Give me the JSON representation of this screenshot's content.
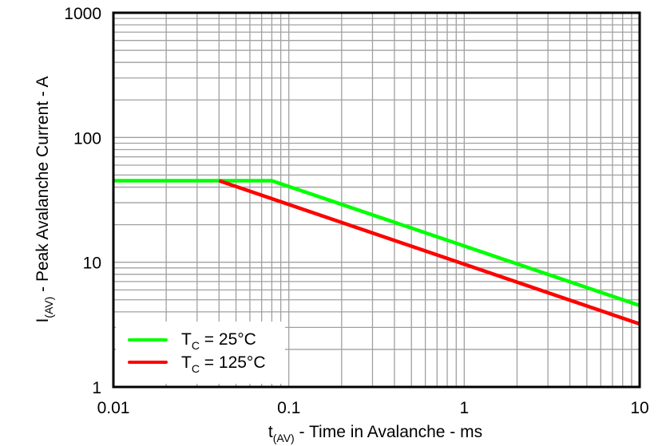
{
  "chart_data": {
    "type": "line",
    "title": "",
    "xlabel": "t(AV) - Time in Avalanche - ms",
    "xlabel_parts": {
      "main": "t",
      "sub": "(AV)",
      "rest": " - Time in Avalanche - ms"
    },
    "ylabel": "I(AV) - Peak Avalanche Current - A",
    "ylabel_parts": {
      "main": "I",
      "sub": "(AV)",
      "rest": " - Peak Avalanche Current - A"
    },
    "xscale": "log",
    "yscale": "log",
    "xlim": [
      0.01,
      10
    ],
    "ylim": [
      1,
      1000
    ],
    "x_ticks": [
      "0.01",
      "0.1",
      "1",
      "10"
    ],
    "y_ticks": [
      "1",
      "10",
      "100",
      "1000"
    ],
    "grid": true,
    "legend_position": "lower left",
    "series": [
      {
        "name": "TC = 25°C",
        "label_main": "T",
        "label_sub": "C",
        "label_rest": " = 25°C",
        "color": "#00ff00",
        "x": [
          0.01,
          0.08,
          10
        ],
        "y": [
          45,
          45,
          4.5
        ]
      },
      {
        "name": "TC = 125°C",
        "label_main": "T",
        "label_sub": "C",
        "label_rest": " = 125°C",
        "color": "#ff0000",
        "x": [
          0.04,
          10
        ],
        "y": [
          45,
          3.2
        ]
      }
    ]
  }
}
